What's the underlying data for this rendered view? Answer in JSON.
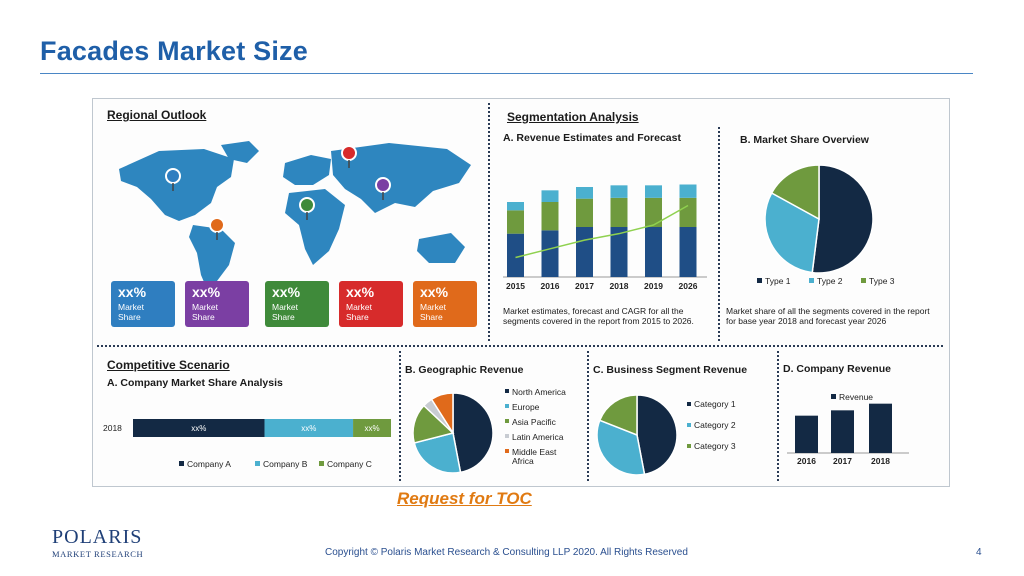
{
  "slide": {
    "title": "Facades Market Size",
    "toc_link": "Request for TOC",
    "copyright": "Copyright © Polaris Market Research & Consulting LLP 2020. All Rights Reserved",
    "page_number": "4",
    "logo": {
      "line1": "POLARIS",
      "line2": "MARKET RESEARCH"
    }
  },
  "infographic": {
    "regional": {
      "heading": "Regional Outlook",
      "cards": [
        {
          "pct": "xx%",
          "line1": "Market",
          "line2": "Share",
          "color": "#2f7ec0"
        },
        {
          "pct": "xx%",
          "line1": "Market",
          "line2": "Share",
          "color": "#7b3fa3"
        },
        {
          "pct": "xx%",
          "line1": "Market",
          "line2": "Share",
          "color": "#3f8a3a"
        },
        {
          "pct": "xx%",
          "line1": "Market",
          "line2": "Share",
          "color": "#d72b2b"
        },
        {
          "pct": "xx%",
          "line1": "Market",
          "line2": "Share",
          "color": "#e06a1b"
        }
      ]
    },
    "segmentation": {
      "heading": "Segmentation Analysis",
      "revenue_title": "A. Revenue Estimates and Forecast",
      "revenue_note": "Market estimates, forecast and CAGR for all the segments covered in the report from 2015 to 2026.",
      "share_title": "B. Market Share Overview",
      "share_note": "Market share of all the segments covered in the report for base year 2018 and forecast year 2026"
    },
    "competitive": {
      "heading": "Competitive Scenario",
      "sub": "A. Company Market Share Analysis",
      "geo_title": "B. Geographic Revenue",
      "biz_title": "C. Business Segment Revenue",
      "company_title": "D. Company Revenue"
    }
  },
  "chart_data": [
    {
      "type": "bar",
      "title": "A. Revenue Estimates and Forecast",
      "categories": [
        "2015",
        "2016",
        "2017",
        "2018",
        "2019",
        "2026"
      ],
      "series": [
        {
          "values": [
            5.2,
            5.6,
            6.0,
            6.0,
            6.0,
            6.0
          ],
          "color": "#1f4e86"
        },
        {
          "values": [
            2.8,
            3.4,
            3.4,
            3.5,
            3.5,
            3.5
          ],
          "color": "#6f9a3e"
        },
        {
          "values": [
            1.0,
            1.4,
            1.4,
            1.5,
            1.5,
            1.6
          ],
          "color": "#4bb0cf"
        }
      ],
      "trend": [
        0.9,
        1.3,
        1.7,
        2.0,
        2.4,
        3.3
      ],
      "trend_color": "#8fd14f",
      "ylim": [
        0,
        12
      ]
    },
    {
      "type": "pie",
      "title": "B. Market Share Overview",
      "labels": [
        "Type 1",
        "Type 2",
        "Type 3"
      ],
      "values": [
        52,
        31,
        17
      ],
      "colors": [
        "#132944",
        "#4bb0cf",
        "#6f9a3e"
      ]
    },
    {
      "type": "bar",
      "title": "A. Company Market Share Analysis",
      "categories": [
        "2018"
      ],
      "stack_labels": [
        "xx%",
        "xx%",
        "xx%"
      ],
      "series": [
        {
          "name": "Company  A",
          "values": [
            52
          ],
          "color": "#132944"
        },
        {
          "name": "Company B",
          "values": [
            35
          ],
          "color": "#4bb0cf"
        },
        {
          "name": "Company C",
          "values": [
            15
          ],
          "color": "#6f9a3e"
        }
      ]
    },
    {
      "type": "pie",
      "title": "B. Geographic Revenue",
      "labels": [
        "North America",
        "Europe",
        "Asia Pacific",
        "Latin America",
        "Middle East Africa"
      ],
      "legend_lines": [
        [
          "North America"
        ],
        [
          "Europe"
        ],
        [
          "Asia Pacific"
        ],
        [
          "Latin America"
        ],
        [
          "Middle East",
          "Africa"
        ]
      ],
      "values": [
        47,
        24,
        16,
        4,
        9
      ],
      "colors": [
        "#132944",
        "#4bb0cf",
        "#6f9a3e",
        "#c8ccd2",
        "#e06a1b"
      ]
    },
    {
      "type": "pie",
      "title": "C. Business Segment Revenue",
      "labels": [
        "Category 1",
        "Category 2",
        "Category 3"
      ],
      "values": [
        47,
        34,
        19
      ],
      "colors": [
        "#132944",
        "#4bb0cf",
        "#6f9a3e"
      ]
    },
    {
      "type": "bar",
      "title": "D. Company Revenue",
      "categories": [
        "2016",
        "2017",
        "2018"
      ],
      "series": [
        {
          "name": "Revenue",
          "values": [
            28,
            32,
            37
          ],
          "color": "#132944"
        }
      ],
      "ylim": [
        0,
        60
      ]
    }
  ]
}
